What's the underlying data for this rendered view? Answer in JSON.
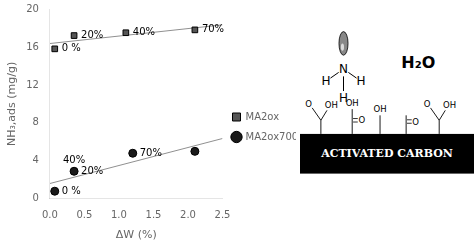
{
  "chart_data": {
    "type": "scatter",
    "xlabel": "ΔW (%)",
    "ylabel": "NH₃,ads (mg/g)",
    "series": [
      {
        "name": "MA2ox",
        "color": "#555555",
        "marker": "square",
        "x": [
          0.07,
          0.35,
          1.1,
          2.1
        ],
        "values": [
          15.8,
          17.2,
          17.5,
          17.8
        ]
      },
      {
        "name": "MA2ox700",
        "color": "#1a1a1a",
        "marker": "circle",
        "x": [
          0.07,
          0.35,
          1.2,
          2.1
        ],
        "values": [
          0.8,
          2.9,
          4.8,
          5.0
        ]
      }
    ],
    "trend_lines": [
      {
        "color": "#909090",
        "x": [
          0.0,
          2.5
        ],
        "values": [
          16.362915,
          18.33
        ]
      },
      {
        "color": "#909090",
        "x": [
          0.0,
          2.5
        ],
        "values": [
          1.61089,
          6.353123
        ]
      }
    ],
    "annotations": [
      {
        "text": "0 %",
        "series": 0,
        "point": 0
      },
      {
        "text": "20%",
        "series": 0,
        "point": 1
      },
      {
        "text": "40%",
        "series": 0,
        "point": 2
      },
      {
        "text": "70%",
        "series": 0,
        "point": 3
      },
      {
        "text": "0 %",
        "series": 1,
        "point": 0
      },
      {
        "text": "20%",
        "series": 1,
        "point": 1
      },
      {
        "text": "40%",
        "series": 1,
        "point": 1
      },
      {
        "text": "70%",
        "series": 1,
        "point": 2
      }
    ],
    "xlim": [
      0.0,
      2.5
    ],
    "ylim": [
      0,
      20
    ],
    "xticks": [
      {
        "value": 0.0,
        "label": "0.0"
      },
      0.5,
      {
        "value": 1.0,
        "label": "1.0"
      },
      1.5,
      {
        "value": 2.0,
        "label": "2.0"
      },
      2.5
    ],
    "yticks": [
      0,
      4,
      8,
      12,
      16,
      20
    ],
    "grid": false,
    "legend": "right",
    "diagram": {
      "molecule": [
        "N",
        "H",
        "H",
        "H"
      ],
      "water": "H₂O",
      "surface": "ACTIVATED CARBON",
      "groups": [
        {
          "type": "carboxyl",
          "labels": [
            "O",
            "OH"
          ]
        },
        {
          "type": "oh_co",
          "labels": [
            "OH",
            "O"
          ]
        },
        {
          "type": "oh",
          "labels": [
            "OH"
          ]
        },
        {
          "type": "co",
          "labels": [
            "O"
          ]
        },
        {
          "type": "carboxyl",
          "labels": [
            "O",
            "OH"
          ]
        }
      ]
    }
  }
}
